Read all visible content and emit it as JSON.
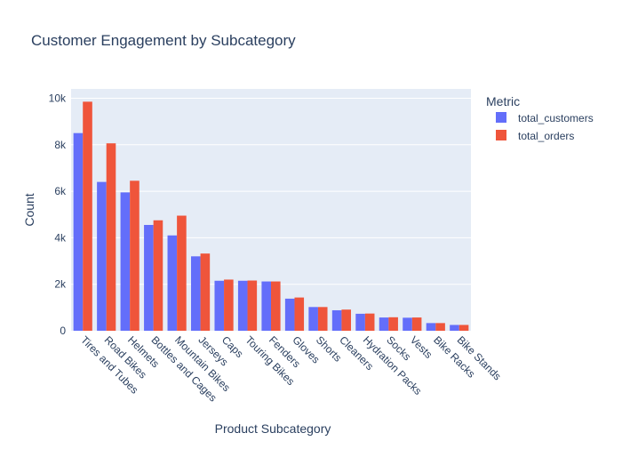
{
  "chart_data": {
    "type": "bar",
    "title": "Customer Engagement by Subcategory",
    "xlabel": "Product Subcategory",
    "ylabel": "Count",
    "ylim": [
      0,
      10400
    ],
    "yticks": [
      0,
      2000,
      4000,
      6000,
      8000,
      10000
    ],
    "ytick_labels": [
      "0",
      "2k",
      "4k",
      "6k",
      "8k",
      "10k"
    ],
    "grid": true,
    "legend": {
      "title": "Metric",
      "placement": "right"
    },
    "categories": [
      "Tires and Tubes",
      "Road Bikes",
      "Helmets",
      "Bottles and Cages",
      "Mountain Bikes",
      "Jerseys",
      "Caps",
      "Touring Bikes",
      "Fenders",
      "Gloves",
      "Shorts",
      "Cleaners",
      "Hydration Packs",
      "Socks",
      "Vests",
      "Bike Racks",
      "Bike Stands"
    ],
    "series": [
      {
        "name": "total_customers",
        "color": "#636efa",
        "values": [
          8500,
          6400,
          5950,
          4550,
          4100,
          3200,
          2150,
          2150,
          2120,
          1380,
          1020,
          880,
          730,
          570,
          560,
          330,
          250
        ]
      },
      {
        "name": "total_orders",
        "color": "#ef553b",
        "values": [
          9850,
          8060,
          6450,
          4750,
          4950,
          3320,
          2200,
          2160,
          2120,
          1430,
          1020,
          910,
          740,
          580,
          570,
          330,
          250
        ]
      }
    ]
  }
}
